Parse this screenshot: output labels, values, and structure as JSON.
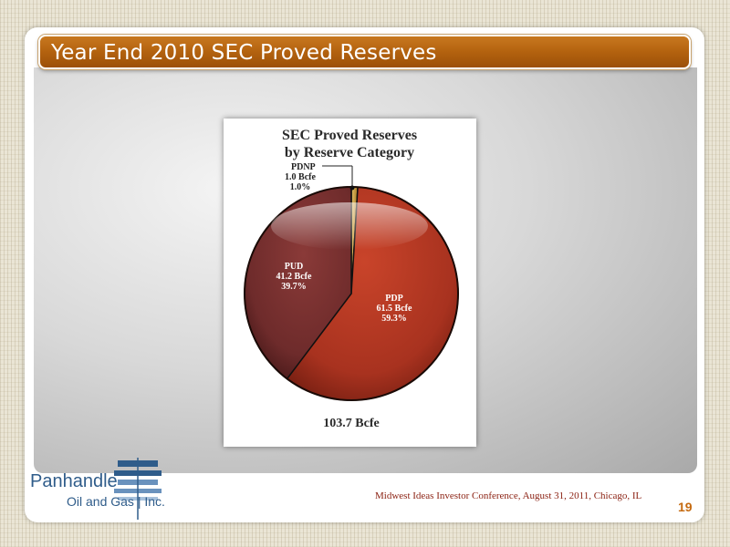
{
  "slide": {
    "title": "Year End 2010 SEC Proved Reserves",
    "footer": "Midwest Ideas Investor Conference, August 31, 2011, Chicago, IL",
    "page_number": "19"
  },
  "logo": {
    "line1": "Panhandle",
    "line2": "Oil and Gas",
    "line3": "Inc."
  },
  "colors": {
    "title_bar": "#b3620f",
    "pdp": "#a8321f",
    "pud": "#6e2b2b",
    "pdnp": "#c49a3a",
    "footer_text": "#8a1f10",
    "page_number": "#c56a10",
    "logo_blue": "#2f5c8a"
  },
  "chart_data": {
    "type": "pie",
    "title_line1": "SEC Proved Reserves",
    "title_line2": "by Reserve Category",
    "total_label": "103.7 Bcfe",
    "slices": [
      {
        "name": "PDNP",
        "value_label": "1.0 Bcfe",
        "percent_label": "1.0%",
        "value": 1.0,
        "percent": 1.0
      },
      {
        "name": "PDP",
        "value_label": "61.5 Bcfe",
        "percent_label": "59.3%",
        "value": 61.5,
        "percent": 59.3
      },
      {
        "name": "PUD",
        "value_label": "41.2 Bcfe",
        "percent_label": "39.7%",
        "value": 41.2,
        "percent": 39.7
      }
    ]
  }
}
